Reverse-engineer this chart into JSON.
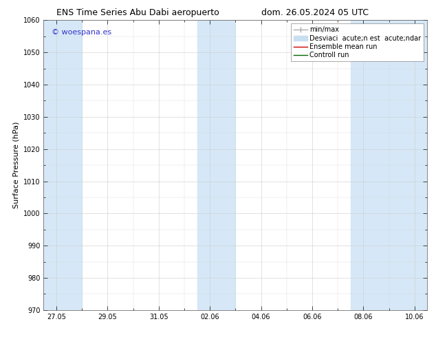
{
  "title_left": "ENS Time Series Abu Dabi aeropuerto",
  "title_right": "dom. 26.05.2024 05 UTC",
  "ylabel": "Surface Pressure (hPa)",
  "ylim": [
    970,
    1060
  ],
  "yticks": [
    970,
    980,
    990,
    1000,
    1010,
    1020,
    1030,
    1040,
    1050,
    1060
  ],
  "xtick_labels": [
    "27.05",
    "29.05",
    "31.05",
    "02.06",
    "04.06",
    "06.06",
    "08.06",
    "10.06"
  ],
  "watermark": "© woespana.es",
  "watermark_color": "#3333cc",
  "legend_label_minmax": "min/max",
  "legend_label_std": "Desviaci  acute;n est  acute;ndar",
  "legend_label_ens": "Ensemble mean run",
  "legend_label_ctrl": "Controll run",
  "shaded_color": "#d6e8f7",
  "bg_color": "#ffffff",
  "grid_color": "#cccccc",
  "title_fontsize": 9,
  "tick_fontsize": 7,
  "ylabel_fontsize": 8,
  "legend_fontsize": 7,
  "watermark_fontsize": 8
}
